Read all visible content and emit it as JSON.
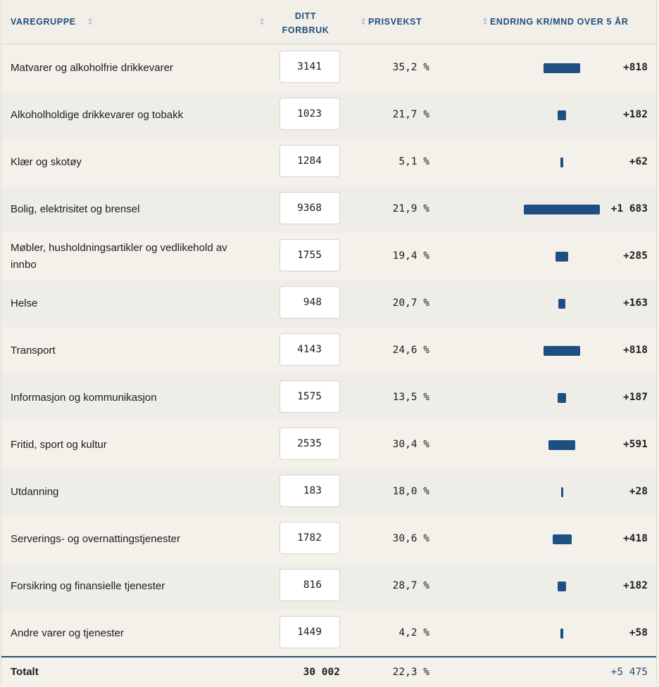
{
  "header": {
    "col_group": "VAREGRUPPE",
    "col_usage_line1": "DITT",
    "col_usage_line2": "FORBRUK",
    "col_price": "PRISVEKST",
    "col_change": "ENDRING KR/MND OVER 5 ÅR"
  },
  "rows": [
    {
      "name": "Matvarer og alkoholfrie drikkevarer",
      "usage": "3141",
      "price_growth": "35,2 %",
      "change": "+818",
      "change_value": 818
    },
    {
      "name": "Alkoholholdige drikkevarer og tobakk",
      "usage": "1023",
      "price_growth": "21,7 %",
      "change": "+182",
      "change_value": 182
    },
    {
      "name": "Klær og skotøy",
      "usage": "1284",
      "price_growth": "5,1 %",
      "change": "+62",
      "change_value": 62
    },
    {
      "name": "Bolig, elektrisitet og brensel",
      "usage": "9368",
      "price_growth": "21,9 %",
      "change": "+1 683",
      "change_value": 1683
    },
    {
      "name": "Møbler, husholdningsartikler og vedlikehold av innbo",
      "usage": "1755",
      "price_growth": "19,4 %",
      "change": "+285",
      "change_value": 285
    },
    {
      "name": "Helse",
      "usage": "948",
      "price_growth": "20,7 %",
      "change": "+163",
      "change_value": 163
    },
    {
      "name": "Transport",
      "usage": "4143",
      "price_growth": "24,6 %",
      "change": "+818",
      "change_value": 818
    },
    {
      "name": "Informasjon og kommunikasjon",
      "usage": "1575",
      "price_growth": "13,5 %",
      "change": "+187",
      "change_value": 187
    },
    {
      "name": "Fritid, sport og kultur",
      "usage": "2535",
      "price_growth": "30,4 %",
      "change": "+591",
      "change_value": 591
    },
    {
      "name": "Utdanning",
      "usage": "183",
      "price_growth": "18,0 %",
      "change": "+28",
      "change_value": 28
    },
    {
      "name": "Serverings- og overnattingstjenester",
      "usage": "1782",
      "price_growth": "30,6 %",
      "change": "+418",
      "change_value": 418
    },
    {
      "name": "Forsikring og finansielle tjenester",
      "usage": "816",
      "price_growth": "28,7 %",
      "change": "+182",
      "change_value": 182
    },
    {
      "name": "Andre varer og tjenester",
      "usage": "1449",
      "price_growth": "4,2 %",
      "change": "+58",
      "change_value": 58
    }
  ],
  "total": {
    "label": "Totalt",
    "usage": "30 002",
    "price_growth": "22,3 %",
    "change": "+5 475"
  },
  "colors": {
    "accent": "#1f4e7a",
    "bar": "#1e4f82",
    "row_alt": "#efede7",
    "row_base": "#f4f1ea"
  }
}
